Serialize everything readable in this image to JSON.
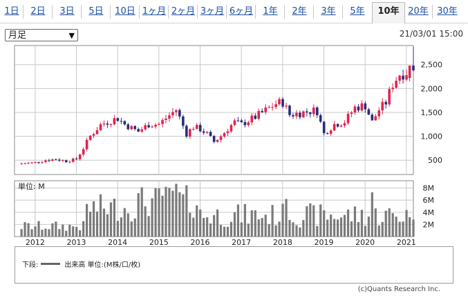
{
  "tabs": [
    {
      "label": "1日",
      "active": false
    },
    {
      "label": "2日",
      "active": false
    },
    {
      "label": "3日",
      "active": false
    },
    {
      "label": "5日",
      "active": false
    },
    {
      "label": "10日",
      "active": false
    },
    {
      "label": "1ヶ月",
      "active": false
    },
    {
      "label": "2ヶ月",
      "active": false
    },
    {
      "label": "3ヶ月",
      "active": false
    },
    {
      "label": "6ヶ月",
      "active": false
    },
    {
      "label": "1年",
      "active": false
    },
    {
      "label": "2年",
      "active": false
    },
    {
      "label": "3年",
      "active": false
    },
    {
      "label": "5年",
      "active": false
    },
    {
      "label": "10年",
      "active": true
    },
    {
      "label": "20年",
      "active": false
    },
    {
      "label": "30年",
      "active": false
    }
  ],
  "period_select": {
    "value": "月足"
  },
  "datetime": "21/03/01 15:00",
  "colors": {
    "up": "#e0244f",
    "down": "#2a2c7a",
    "volume": "#7a7a7a",
    "grid": "#c8c8c8"
  },
  "legend": {
    "prefix": "下段:",
    "label": "出来高 単位:(M株/口/枚)"
  },
  "copyright": "(c)Quants Research Inc.",
  "chart_data": [
    {
      "type": "candlestick",
      "interval": "monthly",
      "y_ticks": [
        "500",
        "1,000",
        "1,500",
        "2,000",
        "2,500"
      ],
      "y_tick_values": [
        500,
        1000,
        1500,
        2000,
        2500
      ],
      "ylim": [
        200,
        2900
      ],
      "x_ticks": [
        "2012",
        "2013",
        "2014",
        "2015",
        "2016",
        "2017",
        "2018",
        "2019",
        "2020",
        "2021"
      ],
      "x_start_year": 2011.5,
      "x_end_year": 2021.17,
      "candles": []
    },
    {
      "type": "bar",
      "title": "単位: M",
      "y_ticks": [
        "2M",
        "4M",
        "6M",
        "8M"
      ],
      "y_tick_values": [
        2,
        4,
        6,
        8
      ],
      "ylim": [
        0,
        9.2
      ],
      "values": []
    }
  ]
}
